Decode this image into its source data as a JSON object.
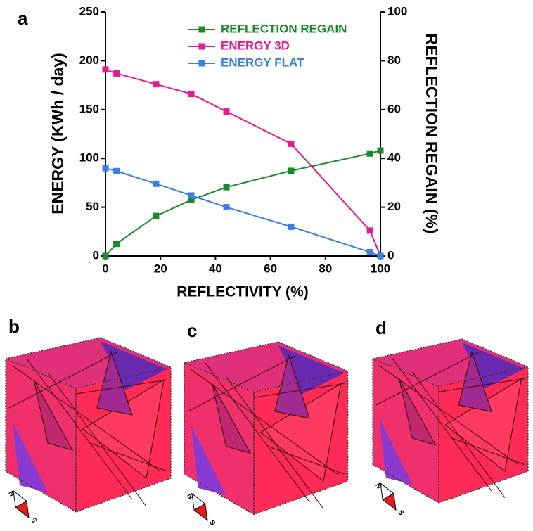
{
  "chart_data": {
    "type": "line",
    "panel_label": "a",
    "x": [
      0,
      4,
      18.4,
      31.2,
      44,
      67.5,
      96.2,
      100
    ],
    "series": [
      {
        "name": "REFLECTION REGAIN",
        "color": "#1b8a2a",
        "axis": "y2",
        "values": [
          0,
          5,
          16.4,
          23,
          28.2,
          34.9,
          42,
          43.2
        ]
      },
      {
        "name": "ENERGY 3D",
        "color": "#e8198c",
        "values": [
          191,
          187,
          176,
          166,
          148,
          115,
          26,
          0
        ]
      },
      {
        "name": "ENERGY FLAT",
        "color": "#3a7fe6",
        "values": [
          90,
          87,
          74,
          62,
          50,
          30,
          4,
          0
        ]
      }
    ],
    "xlabel": "REFLECTIVITY (%)",
    "ylabel": "ENERGY (KWh / day)",
    "y2label": "REFLECTION REGAIN (%)",
    "xlim": [
      0,
      100
    ],
    "xticks": [
      0,
      20,
      40,
      60,
      80,
      100
    ],
    "ylim": [
      0,
      250
    ],
    "yticks": [
      0,
      50,
      100,
      150,
      200,
      250
    ],
    "y2lim": [
      0,
      100
    ],
    "y2ticks": [
      0,
      20,
      40,
      60,
      80,
      100
    ],
    "legend": "upper right"
  },
  "panel_labels": [
    "b",
    "c",
    "d"
  ],
  "compass_labels": {
    "north": "N",
    "south": "S"
  }
}
